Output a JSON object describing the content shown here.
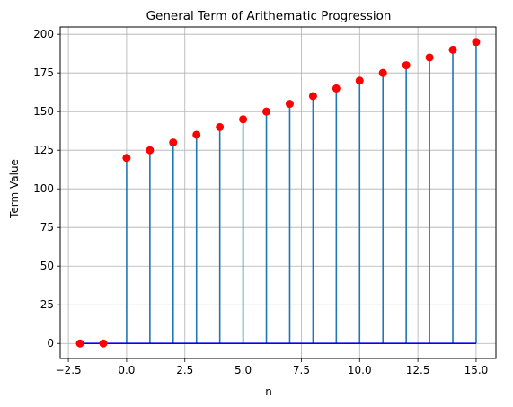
{
  "chart_data": {
    "type": "scatter",
    "style": "stem",
    "title": "General Term of Arithematic Progression",
    "xlabel": "n",
    "ylabel": "Term Value",
    "x": [
      -2,
      -1,
      0,
      1,
      2,
      3,
      4,
      5,
      6,
      7,
      8,
      9,
      10,
      11,
      12,
      13,
      14,
      15
    ],
    "y": [
      0,
      0,
      120,
      125,
      130,
      135,
      140,
      145,
      150,
      155,
      160,
      165,
      170,
      175,
      180,
      185,
      190,
      195
    ],
    "xlim": [
      -2.85,
      15.85
    ],
    "ylim": [
      -9.75,
      204.75
    ],
    "xticks": [
      -2.5,
      0.0,
      2.5,
      5.0,
      7.5,
      10.0,
      12.5,
      15.0
    ],
    "xtick_labels": [
      "−2.5",
      "0.0",
      "2.5",
      "5.0",
      "7.5",
      "10.0",
      "12.5",
      "15.0"
    ],
    "yticks": [
      0,
      25,
      50,
      75,
      100,
      125,
      150,
      175,
      200
    ],
    "ytick_labels": [
      "0",
      "25",
      "50",
      "75",
      "100",
      "125",
      "150",
      "175",
      "200"
    ],
    "grid": true,
    "colors": {
      "stem": "#1f77b4",
      "marker": "#ff0000",
      "baseline": "#0000ff",
      "grid": "#b0b0b0"
    }
  }
}
